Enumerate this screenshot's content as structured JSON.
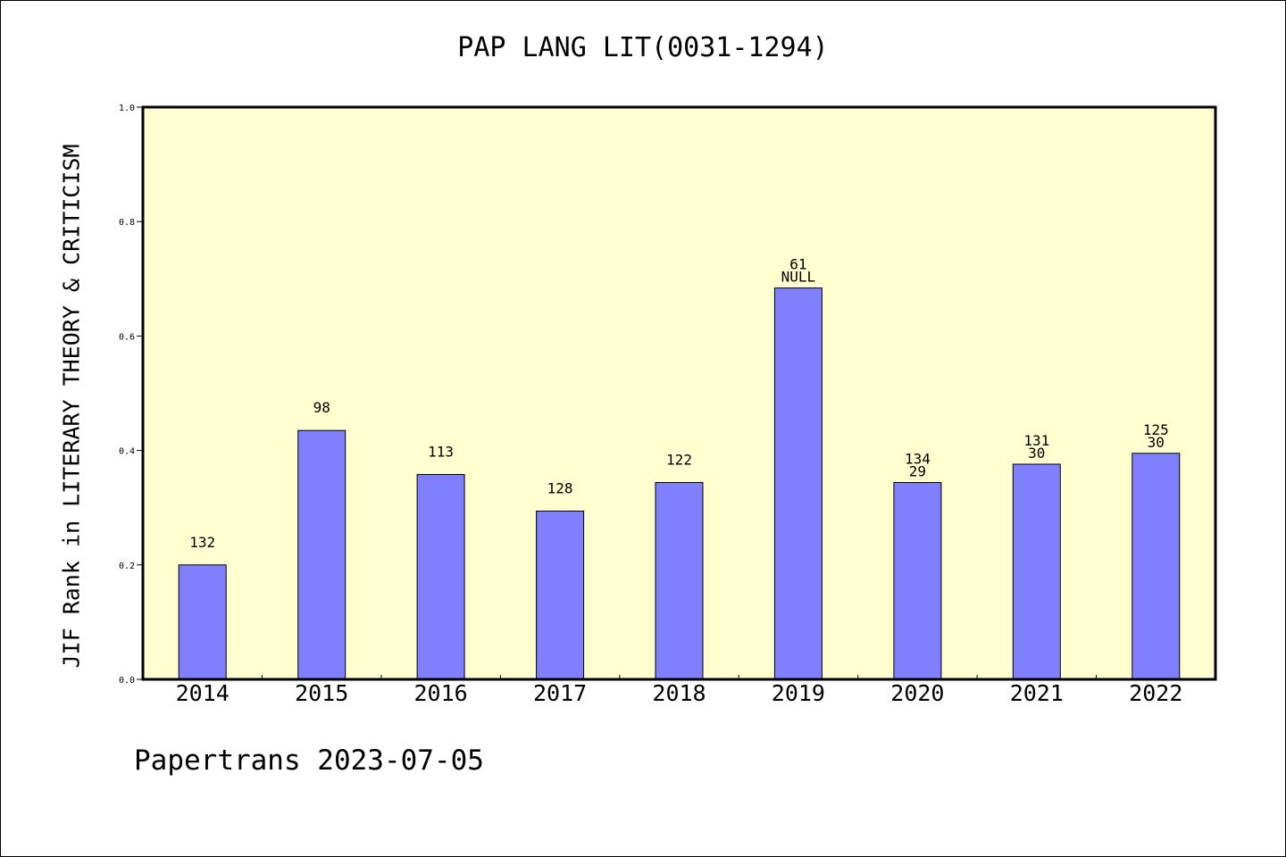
{
  "chart_data": {
    "type": "bar",
    "title": "PAP LANG LIT(0031-1294)",
    "ylabel": "JIF Rank in LITERARY THEORY & CRITICISM",
    "xlabel": "",
    "ylim": [
      0,
      1.0
    ],
    "yticks": [
      "0.0",
      "0.2",
      "0.4",
      "0.6",
      "0.8",
      "1.0"
    ],
    "categories": [
      "2014",
      "2015",
      "2016",
      "2017",
      "2018",
      "2019",
      "2020",
      "2021",
      "2022"
    ],
    "values": [
      0.2,
      0.435,
      0.358,
      0.294,
      0.344,
      0.684,
      0.344,
      0.376,
      0.395
    ],
    "labels_top": [
      "132",
      "98",
      "113",
      "128",
      "122",
      "61",
      "134",
      "131",
      "125"
    ],
    "labels_second": [
      "",
      "",
      "",
      "",
      "",
      "NULL",
      "29",
      "30",
      "30"
    ],
    "grid": false,
    "colors": {
      "plot_bg": "#ffffd0",
      "bar": "#8080ff"
    }
  },
  "footer": "Papertrans 2023-07-05"
}
